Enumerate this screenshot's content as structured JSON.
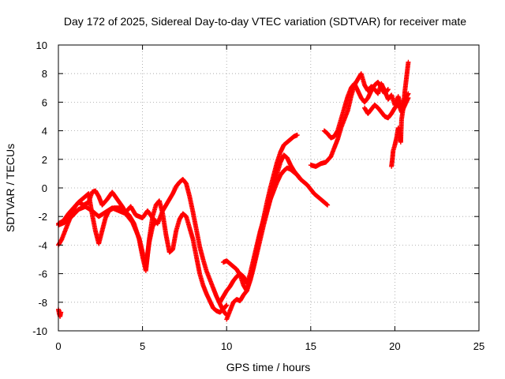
{
  "chart_data": {
    "type": "scatter",
    "title": "Day 172 of 2025, Sidereal Day-to-day VTEC variation (SDTVAR) for receiver mate",
    "xlabel": "GPS time / hours",
    "ylabel": "SDTVAR / TECUs",
    "xlim": [
      0,
      25
    ],
    "ylim": [
      -10,
      10
    ],
    "xticks": [
      "0",
      "5",
      "10",
      "15",
      "20",
      "25"
    ],
    "yticks": [
      "-10",
      "-8",
      "-6",
      "-4",
      "-2",
      "0",
      "2",
      "4",
      "6",
      "8",
      "10"
    ],
    "grid": true,
    "marker": "plus",
    "color": "#ff0000",
    "series": [
      {
        "x": [
          0.0,
          0.05,
          0.1,
          0.15
        ],
        "y": [
          -8.5,
          -8.8,
          -9.0,
          -8.7
        ]
      },
      {
        "x": [
          0.0,
          0.2,
          0.4,
          0.6,
          0.8,
          1.0,
          1.2,
          1.5,
          1.8,
          2.0,
          2.2,
          2.4,
          2.6,
          2.9,
          3.2,
          3.5,
          3.8,
          4.0,
          4.3,
          4.6,
          5.0,
          5.3,
          5.6,
          5.9,
          6.2,
          6.5,
          6.8,
          7.0,
          7.2,
          7.4,
          7.6,
          7.8,
          8.0,
          8.2,
          8.4,
          8.6,
          8.8,
          9.0,
          9.2,
          9.4,
          9.6,
          9.8,
          10.0
        ],
        "y": [
          -4.0,
          -3.6,
          -3.0,
          -2.4,
          -1.8,
          -1.3,
          -1.0,
          -1.2,
          -1.0,
          -0.3,
          -0.2,
          -0.6,
          -1.2,
          -0.8,
          -0.3,
          -0.8,
          -1.3,
          -1.7,
          -1.3,
          -1.9,
          -2.1,
          -1.6,
          -2.1,
          -2.5,
          -1.6,
          -1.0,
          -0.4,
          0.1,
          0.4,
          0.6,
          0.3,
          -0.6,
          -1.7,
          -2.9,
          -4.1,
          -5.0,
          -5.8,
          -6.4,
          -7.0,
          -7.6,
          -8.1,
          -8.6,
          -8.9
        ]
      },
      {
        "x": [
          0.0,
          0.3,
          0.6,
          0.9,
          1.2,
          1.5,
          1.8,
          2.0,
          2.2,
          2.4,
          2.6,
          2.8,
          3.0,
          3.3,
          3.6,
          3.9,
          4.2,
          4.5,
          4.8,
          5.0,
          5.2,
          5.4,
          5.6,
          5.8,
          6.0,
          6.2,
          6.4,
          6.6,
          6.8,
          7.0,
          7.2,
          7.4,
          7.6,
          7.8,
          8.0,
          8.2,
          8.4,
          8.6,
          8.8,
          9.0,
          9.2,
          9.4,
          9.6,
          9.8,
          10.0
        ],
        "y": [
          -2.5,
          -2.3,
          -1.8,
          -1.4,
          -1.0,
          -0.7,
          -0.4,
          -1.8,
          -3.0,
          -3.9,
          -3.0,
          -2.1,
          -1.6,
          -1.4,
          -1.4,
          -1.6,
          -1.9,
          -2.5,
          -3.6,
          -4.8,
          -5.8,
          -3.6,
          -2.0,
          -1.2,
          -0.9,
          -1.8,
          -3.3,
          -4.5,
          -4.3,
          -3.0,
          -2.2,
          -1.8,
          -2.0,
          -2.8,
          -3.6,
          -4.8,
          -6.0,
          -6.8,
          -7.4,
          -7.9,
          -8.4,
          -8.6,
          -8.7,
          -8.5,
          -8.2
        ]
      },
      {
        "x": [
          0.0,
          0.4,
          0.8,
          1.2,
          1.6,
          2.0,
          2.4,
          2.8,
          3.2,
          3.6,
          4.0,
          4.4,
          4.8,
          5.0,
          5.2,
          5.4,
          5.6,
          5.8
        ],
        "y": [
          -2.6,
          -2.4,
          -2.0,
          -1.5,
          -1.3,
          -1.6,
          -2.0,
          -1.7,
          -1.4,
          -1.6,
          -1.8,
          -2.4,
          -3.5,
          -4.5,
          -5.5,
          -3.8,
          -2.7,
          -2.3
        ]
      },
      {
        "x": [
          10.0,
          10.2,
          10.4,
          10.6,
          10.8,
          11.0,
          11.2,
          11.4,
          11.6,
          11.8,
          12.0,
          12.2,
          12.4,
          12.6,
          12.8,
          13.0,
          13.2,
          13.4,
          13.6,
          13.8,
          14.0,
          14.2
        ],
        "y": [
          -9.2,
          -8.6,
          -8.0,
          -7.8,
          -7.9,
          -7.5,
          -7.2,
          -6.4,
          -5.4,
          -4.3,
          -3.2,
          -2.1,
          -1.0,
          0.0,
          0.9,
          1.8,
          2.5,
          3.0,
          3.2,
          3.4,
          3.6,
          3.7
        ]
      },
      {
        "x": [
          9.6,
          9.8,
          10.0,
          10.2,
          10.4,
          10.6,
          10.8,
          11.0,
          11.2,
          11.4,
          11.6,
          11.8,
          12.0,
          12.2,
          12.4,
          12.6,
          12.8,
          13.0,
          13.2,
          13.4,
          13.6,
          13.8,
          14.0,
          14.2,
          14.4,
          14.6,
          14.8,
          15.0,
          15.2,
          15.4,
          15.6,
          15.8,
          16.0
        ],
        "y": [
          -8.0,
          -7.6,
          -7.2,
          -6.9,
          -6.5,
          -6.2,
          -6.0,
          -6.2,
          -6.7,
          -6.0,
          -5.0,
          -4.0,
          -3.0,
          -2.2,
          -1.5,
          -0.8,
          -0.2,
          0.4,
          0.9,
          1.2,
          1.4,
          1.3,
          1.1,
          0.9,
          0.6,
          0.4,
          0.2,
          -0.1,
          -0.4,
          -0.6,
          -0.8,
          -1.0,
          -1.2
        ]
      },
      {
        "x": [
          9.8,
          10.0,
          10.2,
          10.4,
          10.6,
          10.8,
          11.0,
          11.2,
          11.4,
          11.6,
          11.8,
          12.0,
          12.2,
          12.4,
          12.6,
          12.8,
          13.0,
          13.2,
          13.4,
          13.6,
          13.8,
          14.0,
          14.2,
          14.4
        ],
        "y": [
          -5.2,
          -5.1,
          -5.3,
          -5.5,
          -5.7,
          -6.1,
          -6.8,
          -7.2,
          -6.5,
          -5.6,
          -4.6,
          -3.6,
          -2.6,
          -1.7,
          -0.8,
          0.1,
          1.0,
          1.8,
          2.3,
          2.1,
          1.6,
          1.2,
          0.9,
          0.6
        ]
      },
      {
        "x": [
          15.0,
          15.3,
          15.6,
          15.9,
          16.2,
          16.4,
          16.6,
          16.8,
          17.0,
          17.2,
          17.4,
          17.6,
          17.8,
          18.0,
          18.2,
          18.4,
          18.6,
          18.8,
          19.0,
          19.2,
          19.4,
          19.6,
          19.8,
          20.0,
          20.2,
          20.4,
          20.6,
          20.8
        ],
        "y": [
          1.6,
          1.5,
          1.7,
          1.8,
          2.2,
          2.8,
          3.4,
          4.2,
          4.8,
          5.4,
          6.4,
          7.2,
          7.6,
          8.0,
          7.2,
          6.8,
          7.1,
          6.9,
          6.6,
          7.3,
          6.8,
          6.2,
          6.5,
          5.8,
          6.4,
          5.6,
          6.2,
          6.6
        ]
      },
      {
        "x": [
          15.8,
          16.0,
          16.2,
          16.4,
          16.6,
          16.8,
          17.0,
          17.2,
          17.4,
          17.6,
          17.8,
          18.0,
          18.2,
          18.4,
          18.6,
          18.8,
          19.0,
          19.2,
          19.4,
          19.6
        ],
        "y": [
          4.0,
          3.8,
          3.5,
          3.6,
          4.0,
          4.8,
          5.6,
          6.4,
          7.0,
          7.3,
          6.8,
          6.3,
          6.0,
          6.3,
          6.8,
          7.2,
          7.4,
          7.0,
          6.6,
          6.9
        ]
      },
      {
        "x": [
          18.2,
          18.4,
          18.6,
          18.8,
          19.0,
          19.2,
          19.4,
          19.6,
          19.8,
          20.0,
          20.2,
          20.4,
          20.6,
          20.8
        ],
        "y": [
          5.6,
          5.2,
          5.5,
          5.8,
          5.6,
          5.3,
          5.0,
          4.9,
          5.2,
          5.6,
          5.9,
          5.3,
          5.8,
          6.3
        ]
      },
      {
        "x": [
          19.8,
          19.85,
          19.9,
          20.0,
          20.1,
          20.2,
          20.3,
          20.35,
          20.4,
          20.5,
          20.6,
          20.7,
          20.8
        ],
        "y": [
          1.5,
          2.0,
          2.6,
          3.0,
          3.5,
          4.2,
          3.8,
          3.2,
          4.8,
          5.6,
          6.8,
          7.8,
          8.8
        ]
      }
    ]
  }
}
